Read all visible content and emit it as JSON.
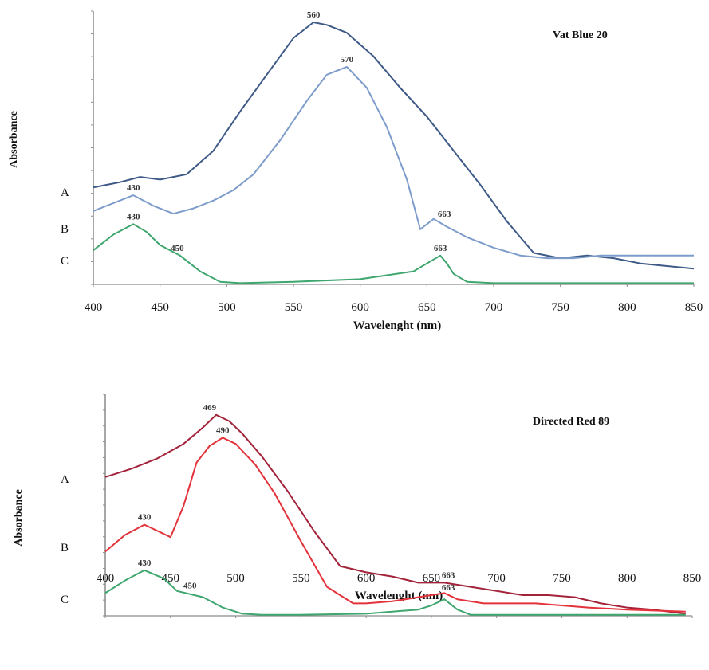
{
  "chart_data": [
    {
      "type": "line",
      "title": "Vat Blue 20",
      "xlabel": "Wavelenght (nm)",
      "ylabel": "Absorbance",
      "xlim": [
        400,
        850
      ],
      "ylim": [
        0,
        1.0
      ],
      "xticks": [
        "400",
        "450",
        "500",
        "550",
        "600",
        "650",
        "700",
        "750",
        "800",
        "850"
      ],
      "curve_labels": [
        "A",
        "B",
        "C"
      ],
      "series": [
        {
          "color": "#3e5a87",
          "x": [
            400,
            420,
            435,
            450,
            470,
            490,
            510,
            530,
            550,
            565,
            575,
            590,
            610,
            630,
            650,
            670,
            690,
            710,
            730,
            750,
            770,
            790,
            810,
            830,
            850
          ],
          "y": [
            0.37,
            0.39,
            0.41,
            0.4,
            0.42,
            0.51,
            0.66,
            0.8,
            0.94,
            1.0,
            0.99,
            0.96,
            0.87,
            0.75,
            0.64,
            0.51,
            0.38,
            0.24,
            0.12,
            0.1,
            0.11,
            0.1,
            0.08,
            0.07,
            0.06
          ]
        },
        {
          "color": "#7d9ccb",
          "x": [
            400,
            415,
            430,
            445,
            460,
            475,
            490,
            505,
            520,
            540,
            560,
            575,
            590,
            605,
            620,
            635,
            645,
            655,
            665,
            680,
            700,
            720,
            740,
            760,
            780,
            800,
            820,
            850
          ],
          "y": [
            0.28,
            0.31,
            0.34,
            0.3,
            0.27,
            0.29,
            0.32,
            0.36,
            0.42,
            0.55,
            0.7,
            0.8,
            0.83,
            0.75,
            0.6,
            0.4,
            0.21,
            0.25,
            0.22,
            0.18,
            0.14,
            0.11,
            0.1,
            0.1,
            0.11,
            0.11,
            0.11,
            0.11
          ]
        },
        {
          "color": "#3ea66e",
          "x": [
            400,
            415,
            430,
            440,
            450,
            465,
            480,
            495,
            510,
            550,
            600,
            640,
            650,
            660,
            665,
            670,
            680,
            700,
            750,
            800,
            850
          ],
          "y": [
            0.13,
            0.19,
            0.23,
            0.2,
            0.15,
            0.11,
            0.05,
            0.01,
            0.005,
            0.01,
            0.02,
            0.05,
            0.08,
            0.11,
            0.08,
            0.04,
            0.01,
            0.005,
            0.005,
            0.005,
            0.005
          ]
        }
      ],
      "peak_labels": [
        {
          "text": "560",
          "x": 565,
          "y": 1.0
        },
        {
          "text": "570",
          "x": 590,
          "y": 0.83
        },
        {
          "text": "430",
          "x": 430,
          "y": 0.34
        },
        {
          "text": "663",
          "x": 663,
          "y": 0.24
        },
        {
          "text": "430",
          "x": 430,
          "y": 0.23
        },
        {
          "text": "450",
          "x": 463,
          "y": 0.11
        },
        {
          "text": "663",
          "x": 660,
          "y": 0.11
        }
      ]
    },
    {
      "type": "line",
      "title": "Directed Red 89",
      "xlabel": "Wavelenght (nm)",
      "ylabel": "Absorbance",
      "xlim": [
        400,
        850
      ],
      "ylim": [
        0,
        1.0
      ],
      "xticks": [
        "400",
        "450",
        "500",
        "550",
        "600",
        "650",
        "700",
        "750",
        "800",
        "850"
      ],
      "curve_labels": [
        "A",
        "B",
        "C"
      ],
      "series": [
        {
          "color": "#a3243a",
          "x": [
            400,
            420,
            440,
            460,
            475,
            485,
            495,
            505,
            520,
            540,
            560,
            580,
            600,
            620,
            640,
            660,
            680,
            700,
            720,
            740,
            760,
            780,
            800,
            820,
            845
          ],
          "y": [
            0.67,
            0.71,
            0.76,
            0.83,
            0.91,
            0.97,
            0.94,
            0.88,
            0.77,
            0.6,
            0.41,
            0.24,
            0.21,
            0.19,
            0.16,
            0.16,
            0.14,
            0.12,
            0.1,
            0.1,
            0.09,
            0.06,
            0.04,
            0.03,
            0.01
          ]
        },
        {
          "color": "#e3323a",
          "x": [
            400,
            415,
            430,
            440,
            450,
            460,
            470,
            480,
            490,
            500,
            515,
            530,
            550,
            570,
            590,
            600,
            620,
            640,
            650,
            660,
            670,
            690,
            710,
            730,
            750,
            770,
            800,
            845
          ],
          "y": [
            0.31,
            0.39,
            0.44,
            0.41,
            0.38,
            0.53,
            0.74,
            0.82,
            0.86,
            0.83,
            0.73,
            0.59,
            0.36,
            0.14,
            0.06,
            0.06,
            0.07,
            0.09,
            0.1,
            0.11,
            0.08,
            0.06,
            0.06,
            0.06,
            0.05,
            0.04,
            0.03,
            0.02
          ]
        },
        {
          "color": "#3ea66e",
          "x": [
            400,
            415,
            430,
            445,
            455,
            475,
            490,
            505,
            520,
            550,
            600,
            640,
            650,
            660,
            670,
            680,
            700,
            750,
            800,
            845
          ],
          "y": [
            0.11,
            0.17,
            0.22,
            0.18,
            0.12,
            0.09,
            0.04,
            0.01,
            0.005,
            0.005,
            0.01,
            0.03,
            0.05,
            0.08,
            0.03,
            0.005,
            0.005,
            0.005,
            0.005,
            0.005
          ]
        }
      ],
      "peak_labels": [
        {
          "text": "469",
          "x": 480,
          "y": 0.97
        },
        {
          "text": "490",
          "x": 490,
          "y": 0.86
        },
        {
          "text": "430",
          "x": 430,
          "y": 0.44
        },
        {
          "text": "430",
          "x": 430,
          "y": 0.22
        },
        {
          "text": "450",
          "x": 465,
          "y": 0.11
        },
        {
          "text": "663",
          "x": 663,
          "y": 0.16
        },
        {
          "text": "663",
          "x": 663,
          "y": 0.1
        }
      ]
    }
  ]
}
